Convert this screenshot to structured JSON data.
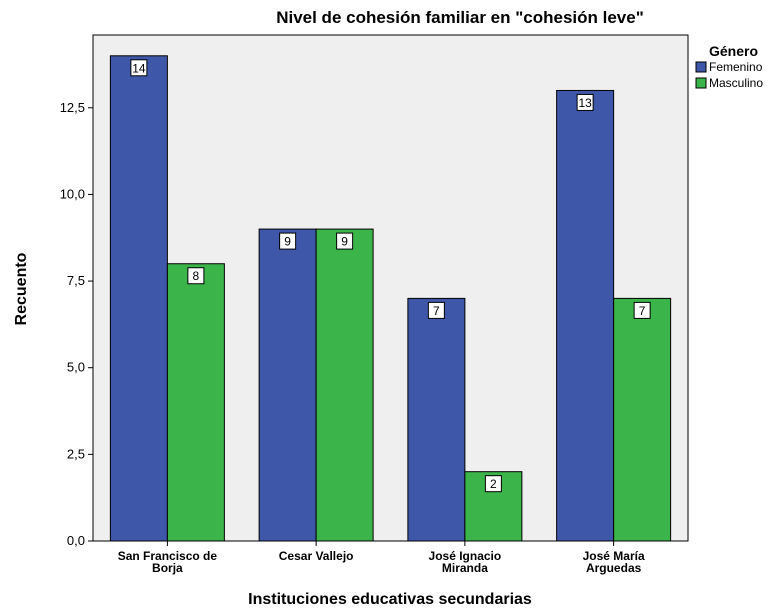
{
  "chart_data": {
    "type": "bar",
    "title": "Nivel de cohesión familiar en \"cohesión leve\"",
    "xlabel": "Instituciones educativas secundarias",
    "ylabel": "Recuento",
    "categories": [
      [
        "San Francisco de",
        "Borja"
      ],
      [
        "Cesar Vallejo"
      ],
      [
        "José Ignacio",
        "Miranda"
      ],
      [
        "José María",
        "Arguedas"
      ]
    ],
    "series": [
      {
        "name": "Femenino",
        "color": "#3F57A8",
        "values": [
          14,
          9,
          7,
          13
        ]
      },
      {
        "name": "Masculino",
        "color": "#3BB54A",
        "values": [
          8,
          9,
          2,
          7
        ]
      }
    ],
    "yticks": [
      "0,0",
      "2,5",
      "5,0",
      "7,5",
      "10,0",
      "12,5"
    ],
    "ytick_values": [
      0,
      2.5,
      5,
      7.5,
      10,
      12.5
    ],
    "ylim": [
      0,
      14.6
    ],
    "legend_title": "Género",
    "legend_position": "top-right",
    "grid": false,
    "plot_background": "#EFEFEF"
  }
}
